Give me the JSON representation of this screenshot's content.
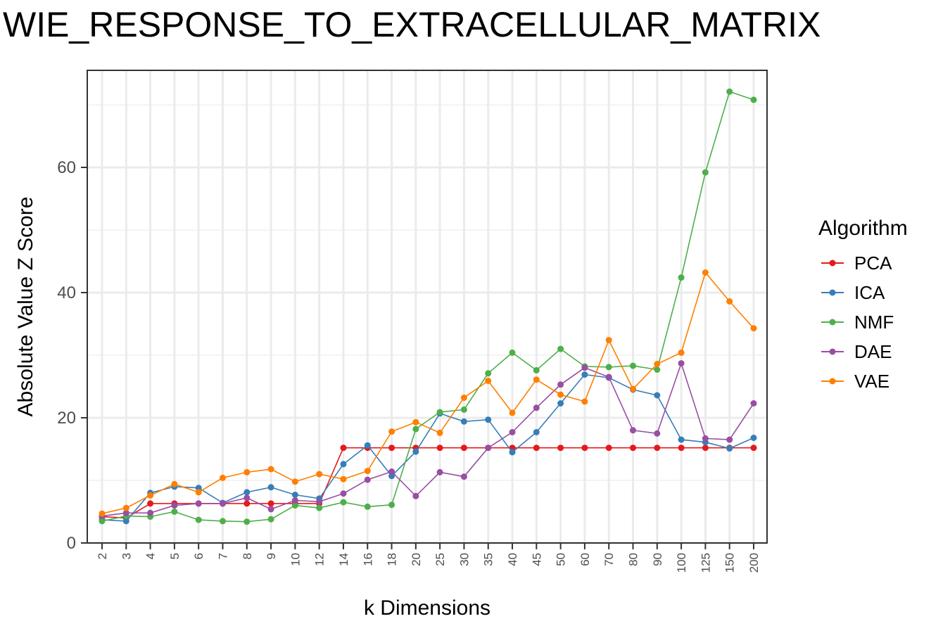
{
  "chart_data": {
    "type": "line",
    "title": "WIE_RESPONSE_TO_EXTRACELLULAR_MATRIX",
    "xlabel": "k Dimensions",
    "ylabel": "Absolute Value Z Score",
    "ylim": [
      0,
      72
    ],
    "yticks": [
      "0",
      "20",
      "40",
      "60"
    ],
    "categories": [
      "2",
      "3",
      "4",
      "5",
      "6",
      "7",
      "8",
      "9",
      "10",
      "12",
      "14",
      "16",
      "18",
      "20",
      "25",
      "30",
      "35",
      "40",
      "45",
      "50",
      "60",
      "70",
      "80",
      "90",
      "100",
      "125",
      "150",
      "200"
    ],
    "grid": true,
    "legend": {
      "title": "Algorithm",
      "position": "right"
    },
    "series": [
      {
        "name": "PCA",
        "color": "#E41A1C",
        "values": [
          4.2,
          4.0,
          6.3,
          6.3,
          6.3,
          6.3,
          6.3,
          6.3,
          6.3,
          6.3,
          15.2,
          15.2,
          15.2,
          15.2,
          15.2,
          15.2,
          15.2,
          15.2,
          15.2,
          15.2,
          15.2,
          15.2,
          15.2,
          15.2,
          15.2,
          15.2,
          15.2,
          15.2
        ]
      },
      {
        "name": "ICA",
        "color": "#377EB8",
        "values": [
          3.7,
          3.5,
          8.0,
          9.0,
          8.8,
          6.4,
          8.1,
          8.9,
          7.7,
          7.1,
          12.6,
          15.6,
          10.7,
          14.6,
          20.7,
          19.4,
          19.7,
          14.5,
          17.7,
          22.3,
          26.9,
          26.4,
          24.5,
          23.6,
          16.5,
          16.1,
          15.1,
          16.8
        ]
      },
      {
        "name": "NMF",
        "color": "#4DAF4A",
        "values": [
          3.5,
          4.3,
          4.2,
          5.0,
          3.7,
          3.5,
          3.4,
          3.8,
          6.0,
          5.6,
          6.5,
          5.8,
          6.1,
          18.2,
          20.9,
          21.3,
          27.1,
          30.4,
          27.6,
          31.0,
          28.2,
          28.1,
          28.3,
          27.7,
          42.4,
          59.2,
          72.1,
          70.8
        ]
      },
      {
        "name": "DAE",
        "color": "#984EA3",
        "values": [
          4.3,
          4.8,
          4.8,
          6.0,
          6.3,
          6.3,
          7.2,
          5.4,
          6.8,
          6.6,
          7.9,
          10.1,
          11.4,
          7.5,
          11.3,
          10.6,
          15.2,
          17.7,
          21.6,
          25.3,
          28.0,
          26.5,
          18.0,
          17.5,
          28.7,
          16.7,
          16.5,
          22.3
        ]
      },
      {
        "name": "VAE",
        "color": "#FF7F00",
        "values": [
          4.7,
          5.6,
          7.6,
          9.4,
          8.1,
          10.4,
          11.3,
          11.8,
          9.8,
          11.0,
          10.2,
          11.5,
          17.8,
          19.3,
          17.6,
          23.2,
          25.9,
          20.8,
          26.1,
          23.7,
          22.6,
          32.4,
          24.6,
          28.6,
          30.4,
          43.2,
          38.6,
          34.3
        ]
      }
    ]
  }
}
